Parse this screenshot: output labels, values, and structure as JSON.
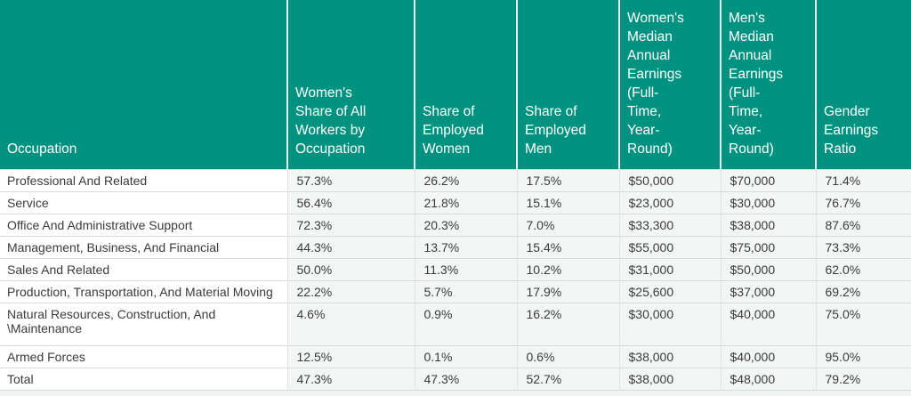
{
  "theme": {
    "header_background": "#009280",
    "header_text_color": "#ffffff",
    "body_text_color": "#3b3b3b",
    "data_cell_background": "#f3f6f5",
    "row_divider_color": "#d7dcdb",
    "page_background": "#f0f3f2"
  },
  "table": {
    "headers": [
      {
        "label": "Occupation"
      },
      {
        "label": "Women's\nShare of All\nWorkers by\nOccupation"
      },
      {
        "label": "Share of\nEmployed\nWomen"
      },
      {
        "label": "Share of\nEmployed\nMen"
      },
      {
        "label": "Women's\nMedian\nAnnual\nEarnings\n(Full-\nTime,\nYear-\nRound)"
      },
      {
        "label": "Men's\nMedian\nAnnual\nEarnings\n(Full-\nTime,\nYear-\nRound)"
      },
      {
        "label": "Gender\nEarnings\nRatio"
      }
    ],
    "rows": [
      {
        "occupation": "Professional And Related",
        "values": [
          "57.3%",
          "26.2%",
          "17.5%",
          "$50,000",
          "$70,000",
          "71.4%"
        ]
      },
      {
        "occupation": "Service",
        "values": [
          "56.4%",
          "21.8%",
          "15.1%",
          "$23,000",
          "$30,000",
          "76.7%"
        ]
      },
      {
        "occupation": "Office And Administrative Support",
        "values": [
          "72.3%",
          "20.3%",
          "7.0%",
          "$33,300",
          "$38,000",
          "87.6%"
        ]
      },
      {
        "occupation": "Management, Business, And Financial",
        "values": [
          "44.3%",
          "13.7%",
          "15.4%",
          "$55,000",
          "$75,000",
          "73.3%"
        ]
      },
      {
        "occupation": "Sales And Related",
        "values": [
          "50.0%",
          "11.3%",
          "10.2%",
          "$31,000",
          "$50,000",
          "62.0%"
        ]
      },
      {
        "occupation": "Production, Transportation, And Material Moving",
        "values": [
          "22.2%",
          "5.7%",
          "17.9%",
          "$25,600",
          "$37,000",
          "69.2%"
        ]
      },
      {
        "occupation": "Natural Resources, Construction, And \\Maintenance",
        "values": [
          "4.6%",
          "0.9%",
          "16.2%",
          "$30,000",
          "$40,000",
          "75.0%"
        ],
        "tall": true
      },
      {
        "occupation": "Armed Forces",
        "values": [
          "12.5%",
          "0.1%",
          "0.6%",
          "$38,000",
          "$40,000",
          "95.0%"
        ]
      },
      {
        "occupation": "Total",
        "values": [
          "47.3%",
          "47.3%",
          "52.7%",
          "$38,000",
          "$48,000",
          "79.2%"
        ]
      }
    ]
  },
  "chart_data": {
    "type": "table",
    "title": "",
    "columns": [
      "Occupation",
      "Women's Share of All Workers by Occupation",
      "Share of Employed Women",
      "Share of Employed Men",
      "Women's Median Annual Earnings (Full-Time, Year-Round)",
      "Men's Median Annual Earnings (Full-Time, Year-Round)",
      "Gender Earnings Ratio"
    ],
    "rows": [
      [
        "Professional And Related",
        "57.3%",
        "26.2%",
        "17.5%",
        "$50,000",
        "$70,000",
        "71.4%"
      ],
      [
        "Service",
        "56.4%",
        "21.8%",
        "15.1%",
        "$23,000",
        "$30,000",
        "76.7%"
      ],
      [
        "Office And Administrative Support",
        "72.3%",
        "20.3%",
        "7.0%",
        "$33,300",
        "$38,000",
        "87.6%"
      ],
      [
        "Management, Business, And Financial",
        "44.3%",
        "13.7%",
        "15.4%",
        "$55,000",
        "$75,000",
        "73.3%"
      ],
      [
        "Sales And Related",
        "50.0%",
        "11.3%",
        "10.2%",
        "$31,000",
        "$50,000",
        "62.0%"
      ],
      [
        "Production, Transportation, And Material Moving",
        "22.2%",
        "5.7%",
        "17.9%",
        "$25,600",
        "$37,000",
        "69.2%"
      ],
      [
        "Natural Resources, Construction, And \\Maintenance",
        "4.6%",
        "0.9%",
        "16.2%",
        "$30,000",
        "$40,000",
        "75.0%"
      ],
      [
        "Armed Forces",
        "12.5%",
        "0.1%",
        "0.6%",
        "$38,000",
        "$40,000",
        "95.0%"
      ],
      [
        "Total",
        "47.3%",
        "47.3%",
        "52.7%",
        "$38,000",
        "$48,000",
        "79.2%"
      ]
    ]
  }
}
